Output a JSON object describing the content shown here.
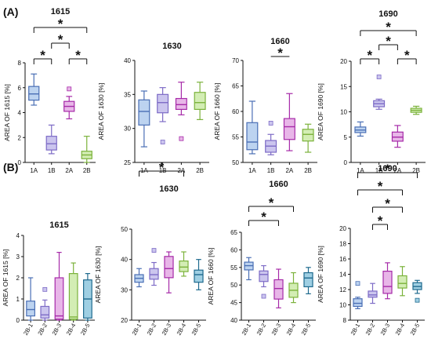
{
  "figure": {
    "panels": [
      {
        "id": "A",
        "label": "(A)"
      },
      {
        "id": "B",
        "label": "(B)"
      }
    ]
  },
  "chart_data": [
    {
      "id": "A1615",
      "type": "boxplot",
      "title": "1615",
      "ylabel": "AREA OF 1615 [%]",
      "ylim": [
        0,
        8
      ],
      "yticks": [
        0,
        2,
        4,
        6,
        8
      ],
      "categories": [
        "1A",
        "1B",
        "2A",
        "2B"
      ],
      "colors": [
        "#4a6fb5",
        "#7d6bc6",
        "#a62aa8",
        "#7bb23b"
      ],
      "fills": [
        "#bcd3f0",
        "#cbc5ee",
        "#e8b6e8",
        "#d3edb4"
      ],
      "boxes": [
        {
          "min": 4.6,
          "q1": 5.0,
          "median": 5.5,
          "q3": 6.1,
          "max": 7.1,
          "outliers": []
        },
        {
          "min": 0.7,
          "q1": 1.0,
          "median": 1.5,
          "q3": 2.1,
          "max": 3.0,
          "outliers": []
        },
        {
          "min": 3.5,
          "q1": 4.1,
          "median": 4.5,
          "q3": 4.9,
          "max": 5.3,
          "outliers": [
            5.9
          ]
        },
        {
          "min": 0.0,
          "q1": 0.3,
          "median": 0.6,
          "q3": 0.9,
          "max": 2.1,
          "outliers": []
        }
      ],
      "sig": [
        {
          "from": 0,
          "to": 3,
          "level": 3,
          "label": "*"
        },
        {
          "from": 1,
          "to": 2,
          "level": 2,
          "label": "*"
        },
        {
          "from": 0,
          "to": 1,
          "level": 1,
          "label": "*"
        },
        {
          "from": 2,
          "to": 3,
          "level": 1,
          "label": "*"
        }
      ]
    },
    {
      "id": "A1630",
      "type": "boxplot",
      "title": "1630",
      "ylabel": "AREA OF 1630 [%]",
      "ylim": [
        25,
        40
      ],
      "yticks": [
        25,
        30,
        35,
        40
      ],
      "categories": [
        "1A",
        "1B",
        "2A",
        "2B"
      ],
      "colors": [
        "#4a6fb5",
        "#7d6bc6",
        "#a62aa8",
        "#7bb23b"
      ],
      "fills": [
        "#bcd3f0",
        "#cbc5ee",
        "#e8b6e8",
        "#d3edb4"
      ],
      "boxes": [
        {
          "min": 27.3,
          "q1": 30.5,
          "median": 32.5,
          "q3": 34.2,
          "max": 35.5,
          "outliers": []
        },
        {
          "min": 31.0,
          "q1": 32.3,
          "median": 33.8,
          "q3": 35.0,
          "max": 36.0,
          "outliers": [
            28.0
          ]
        },
        {
          "min": 32.0,
          "q1": 32.8,
          "median": 33.5,
          "q3": 34.4,
          "max": 36.8,
          "outliers": [
            28.5
          ]
        },
        {
          "min": 31.3,
          "q1": 32.8,
          "median": 33.8,
          "q3": 35.3,
          "max": 36.8,
          "outliers": []
        }
      ],
      "sig": []
    },
    {
      "id": "A1660",
      "type": "boxplot",
      "title": "1660",
      "ylabel": "AREA OF 1660 [%]",
      "ylim": [
        50,
        70
      ],
      "yticks": [
        50,
        55,
        60,
        65,
        70
      ],
      "categories": [
        "1A",
        "1B",
        "2A",
        "2B"
      ],
      "colors": [
        "#4a6fb5",
        "#7d6bc6",
        "#a62aa8",
        "#7bb23b"
      ],
      "fills": [
        "#bcd3f0",
        "#cbc5ee",
        "#e8b6e8",
        "#d3edb4"
      ],
      "boxes": [
        {
          "min": 51.7,
          "q1": 52.5,
          "median": 54.0,
          "q3": 57.8,
          "max": 62.0,
          "outliers": []
        },
        {
          "min": 51.5,
          "q1": 52.0,
          "median": 53.2,
          "q3": 54.3,
          "max": 55.5,
          "outliers": [
            57.7
          ]
        },
        {
          "min": 52.3,
          "q1": 54.5,
          "median": 57.0,
          "q3": 58.6,
          "max": 63.5,
          "outliers": []
        },
        {
          "min": 52.0,
          "q1": 54.2,
          "median": 55.5,
          "q3": 56.5,
          "max": 57.5,
          "outliers": []
        }
      ],
      "sig": [
        {
          "from": 1,
          "to": 2,
          "level": 1,
          "label": "*",
          "arm": false
        }
      ]
    },
    {
      "id": "A1690",
      "type": "boxplot",
      "title": "1690",
      "ylabel": "AREA OF 1690 [%]",
      "ylim": [
        0,
        20
      ],
      "yticks": [
        0,
        5,
        10,
        15,
        20
      ],
      "categories": [
        "1A",
        "1B",
        "2A",
        "2B"
      ],
      "colors": [
        "#4a6fb5",
        "#7d6bc6",
        "#a62aa8",
        "#7bb23b"
      ],
      "fills": [
        "#bcd3f0",
        "#cbc5ee",
        "#e8b6e8",
        "#d3edb4"
      ],
      "boxes": [
        {
          "min": 5.2,
          "q1": 5.9,
          "median": 6.4,
          "q3": 7.0,
          "max": 8.0,
          "outliers": []
        },
        {
          "min": 10.5,
          "q1": 11.0,
          "median": 11.6,
          "q3": 12.2,
          "max": 12.5,
          "outliers": [
            16.9
          ]
        },
        {
          "min": 3.0,
          "q1": 4.2,
          "median": 5.0,
          "q3": 6.0,
          "max": 7.3,
          "outliers": []
        },
        {
          "min": 9.5,
          "q1": 9.9,
          "median": 10.3,
          "q3": 10.7,
          "max": 11.1,
          "outliers": []
        }
      ],
      "sig": [
        {
          "from": 0,
          "to": 3,
          "level": 3,
          "label": "*"
        },
        {
          "from": 1,
          "to": 2,
          "level": 2,
          "label": "*"
        },
        {
          "from": 0,
          "to": 1,
          "level": 1,
          "label": "*"
        },
        {
          "from": 2,
          "to": 3,
          "level": 1,
          "label": "*"
        }
      ]
    },
    {
      "id": "B1615",
      "type": "boxplot",
      "title": "1615",
      "ylabel": "AREA OF 1615 [%]",
      "ylim": [
        0,
        4
      ],
      "yticks": [
        0,
        1,
        2,
        3,
        4
      ],
      "categories": [
        "2B-1",
        "2B-2",
        "2B-3",
        "2B-4",
        "2B-5"
      ],
      "colors": [
        "#4a6fb5",
        "#7d6bc6",
        "#a62aa8",
        "#7bb23b",
        "#1e6a8e"
      ],
      "fills": [
        "#bcd3f0",
        "#cbc5ee",
        "#e8b6e8",
        "#d3edb4",
        "#9fcfe3"
      ],
      "boxes": [
        {
          "min": 0.0,
          "q1": 0.2,
          "median": 0.5,
          "q3": 0.9,
          "max": 2.0,
          "outliers": []
        },
        {
          "min": 0.0,
          "q1": 0.1,
          "median": 0.25,
          "q3": 0.65,
          "max": 0.95,
          "outliers": [
            1.45
          ]
        },
        {
          "min": 0.0,
          "q1": 0.05,
          "median": 0.2,
          "q3": 2.0,
          "max": 3.2,
          "outliers": []
        },
        {
          "min": 0.0,
          "q1": 0.05,
          "median": 0.15,
          "q3": 2.2,
          "max": 2.7,
          "outliers": []
        },
        {
          "min": 0.0,
          "q1": 0.1,
          "median": 1.0,
          "q3": 1.9,
          "max": 2.2,
          "outliers": []
        }
      ],
      "sig": []
    },
    {
      "id": "B1630",
      "type": "boxplot",
      "title": "1630",
      "ylabel": "AREA OF 1630 [%]",
      "ylim": [
        20,
        50
      ],
      "yticks": [
        20,
        30,
        40,
        50
      ],
      "categories": [
        "2B-1",
        "2B-2",
        "2B-3",
        "2B-4",
        "2B-5"
      ],
      "colors": [
        "#4a6fb5",
        "#7d6bc6",
        "#a62aa8",
        "#7bb23b",
        "#1e6a8e"
      ],
      "fills": [
        "#bcd3f0",
        "#cbc5ee",
        "#e8b6e8",
        "#d3edb4",
        "#9fcfe3"
      ],
      "boxes": [
        {
          "min": 31.0,
          "q1": 32.5,
          "median": 33.8,
          "q3": 35.0,
          "max": 37.0,
          "outliers": []
        },
        {
          "min": 31.5,
          "q1": 33.5,
          "median": 35.0,
          "q3": 37.0,
          "max": 39.0,
          "outliers": [
            43.0
          ]
        },
        {
          "min": 29.0,
          "q1": 34.0,
          "median": 37.0,
          "q3": 41.0,
          "max": 42.5,
          "outliers": []
        },
        {
          "min": 34.5,
          "q1": 36.0,
          "median": 37.5,
          "q3": 39.5,
          "max": 42.5,
          "outliers": []
        },
        {
          "min": 30.0,
          "q1": 32.5,
          "median": 35.0,
          "q3": 36.5,
          "max": 40.0,
          "outliers": []
        }
      ],
      "sig": [
        {
          "from": 0,
          "to": 3,
          "level": 1,
          "label": "*"
        }
      ]
    },
    {
      "id": "B1660",
      "type": "boxplot",
      "title": "1660",
      "ylabel": "AREA OF 1660 [%]",
      "ylim": [
        40,
        65
      ],
      "yticks": [
        40,
        45,
        50,
        55,
        60,
        65
      ],
      "categories": [
        "2B-1",
        "2B-2",
        "2B-3",
        "2B-4",
        "2B-5"
      ],
      "colors": [
        "#4a6fb5",
        "#7d6bc6",
        "#a62aa8",
        "#7bb23b",
        "#1e6a8e"
      ],
      "fills": [
        "#bcd3f0",
        "#cbc5ee",
        "#e8b6e8",
        "#d3edb4",
        "#9fcfe3"
      ],
      "boxes": [
        {
          "min": 51.5,
          "q1": 54.3,
          "median": 55.5,
          "q3": 56.5,
          "max": 57.8,
          "outliers": []
        },
        {
          "min": 49.5,
          "q1": 51.0,
          "median": 53.0,
          "q3": 54.0,
          "max": 55.5,
          "outliers": [
            46.8
          ]
        },
        {
          "min": 43.5,
          "q1": 46.0,
          "median": 49.0,
          "q3": 51.5,
          "max": 54.5,
          "outliers": []
        },
        {
          "min": 45.0,
          "q1": 46.5,
          "median": 48.5,
          "q3": 50.5,
          "max": 53.5,
          "outliers": []
        },
        {
          "min": 47.5,
          "q1": 49.5,
          "median": 52.0,
          "q3": 53.5,
          "max": 55.0,
          "outliers": []
        }
      ],
      "sig": [
        {
          "from": 0,
          "to": 3,
          "level": 3,
          "label": "*"
        },
        {
          "from": 0,
          "to": 2,
          "level": 2,
          "label": "*"
        }
      ]
    },
    {
      "id": "B1690",
      "type": "boxplot",
      "title": "1690",
      "ylabel": "AREA OF 1690 [%]",
      "ylim": [
        8,
        20
      ],
      "yticks": [
        8,
        10,
        12,
        14,
        16,
        18,
        20
      ],
      "categories": [
        "2B-1",
        "2B-2",
        "2B-3",
        "2B-4",
        "2B-5"
      ],
      "colors": [
        "#4a6fb5",
        "#7d6bc6",
        "#a62aa8",
        "#7bb23b",
        "#1e6a8e"
      ],
      "fills": [
        "#bcd3f0",
        "#cbc5ee",
        "#e8b6e8",
        "#d3edb4",
        "#9fcfe3"
      ],
      "boxes": [
        {
          "min": 9.5,
          "q1": 9.8,
          "median": 10.2,
          "q3": 10.8,
          "max": 11.0,
          "outliers": [
            12.8
          ]
        },
        {
          "min": 10.2,
          "q1": 11.0,
          "median": 11.3,
          "q3": 11.8,
          "max": 12.8,
          "outliers": []
        },
        {
          "min": 10.8,
          "q1": 11.5,
          "median": 12.4,
          "q3": 14.4,
          "max": 15.5,
          "outliers": []
        },
        {
          "min": 11.2,
          "q1": 12.2,
          "median": 12.8,
          "q3": 13.8,
          "max": 15.0,
          "outliers": []
        },
        {
          "min": 11.5,
          "q1": 12.0,
          "median": 12.4,
          "q3": 12.9,
          "max": 13.2,
          "outliers": [
            10.6
          ]
        }
      ],
      "sig": [
        {
          "from": 0,
          "to": 4,
          "level": 4,
          "label": "*"
        },
        {
          "from": 0,
          "to": 3,
          "level": 3,
          "label": "*"
        },
        {
          "from": 1,
          "to": 3,
          "level": 2,
          "label": "*"
        },
        {
          "from": 1,
          "to": 2,
          "level": 1,
          "label": "*"
        }
      ]
    }
  ]
}
